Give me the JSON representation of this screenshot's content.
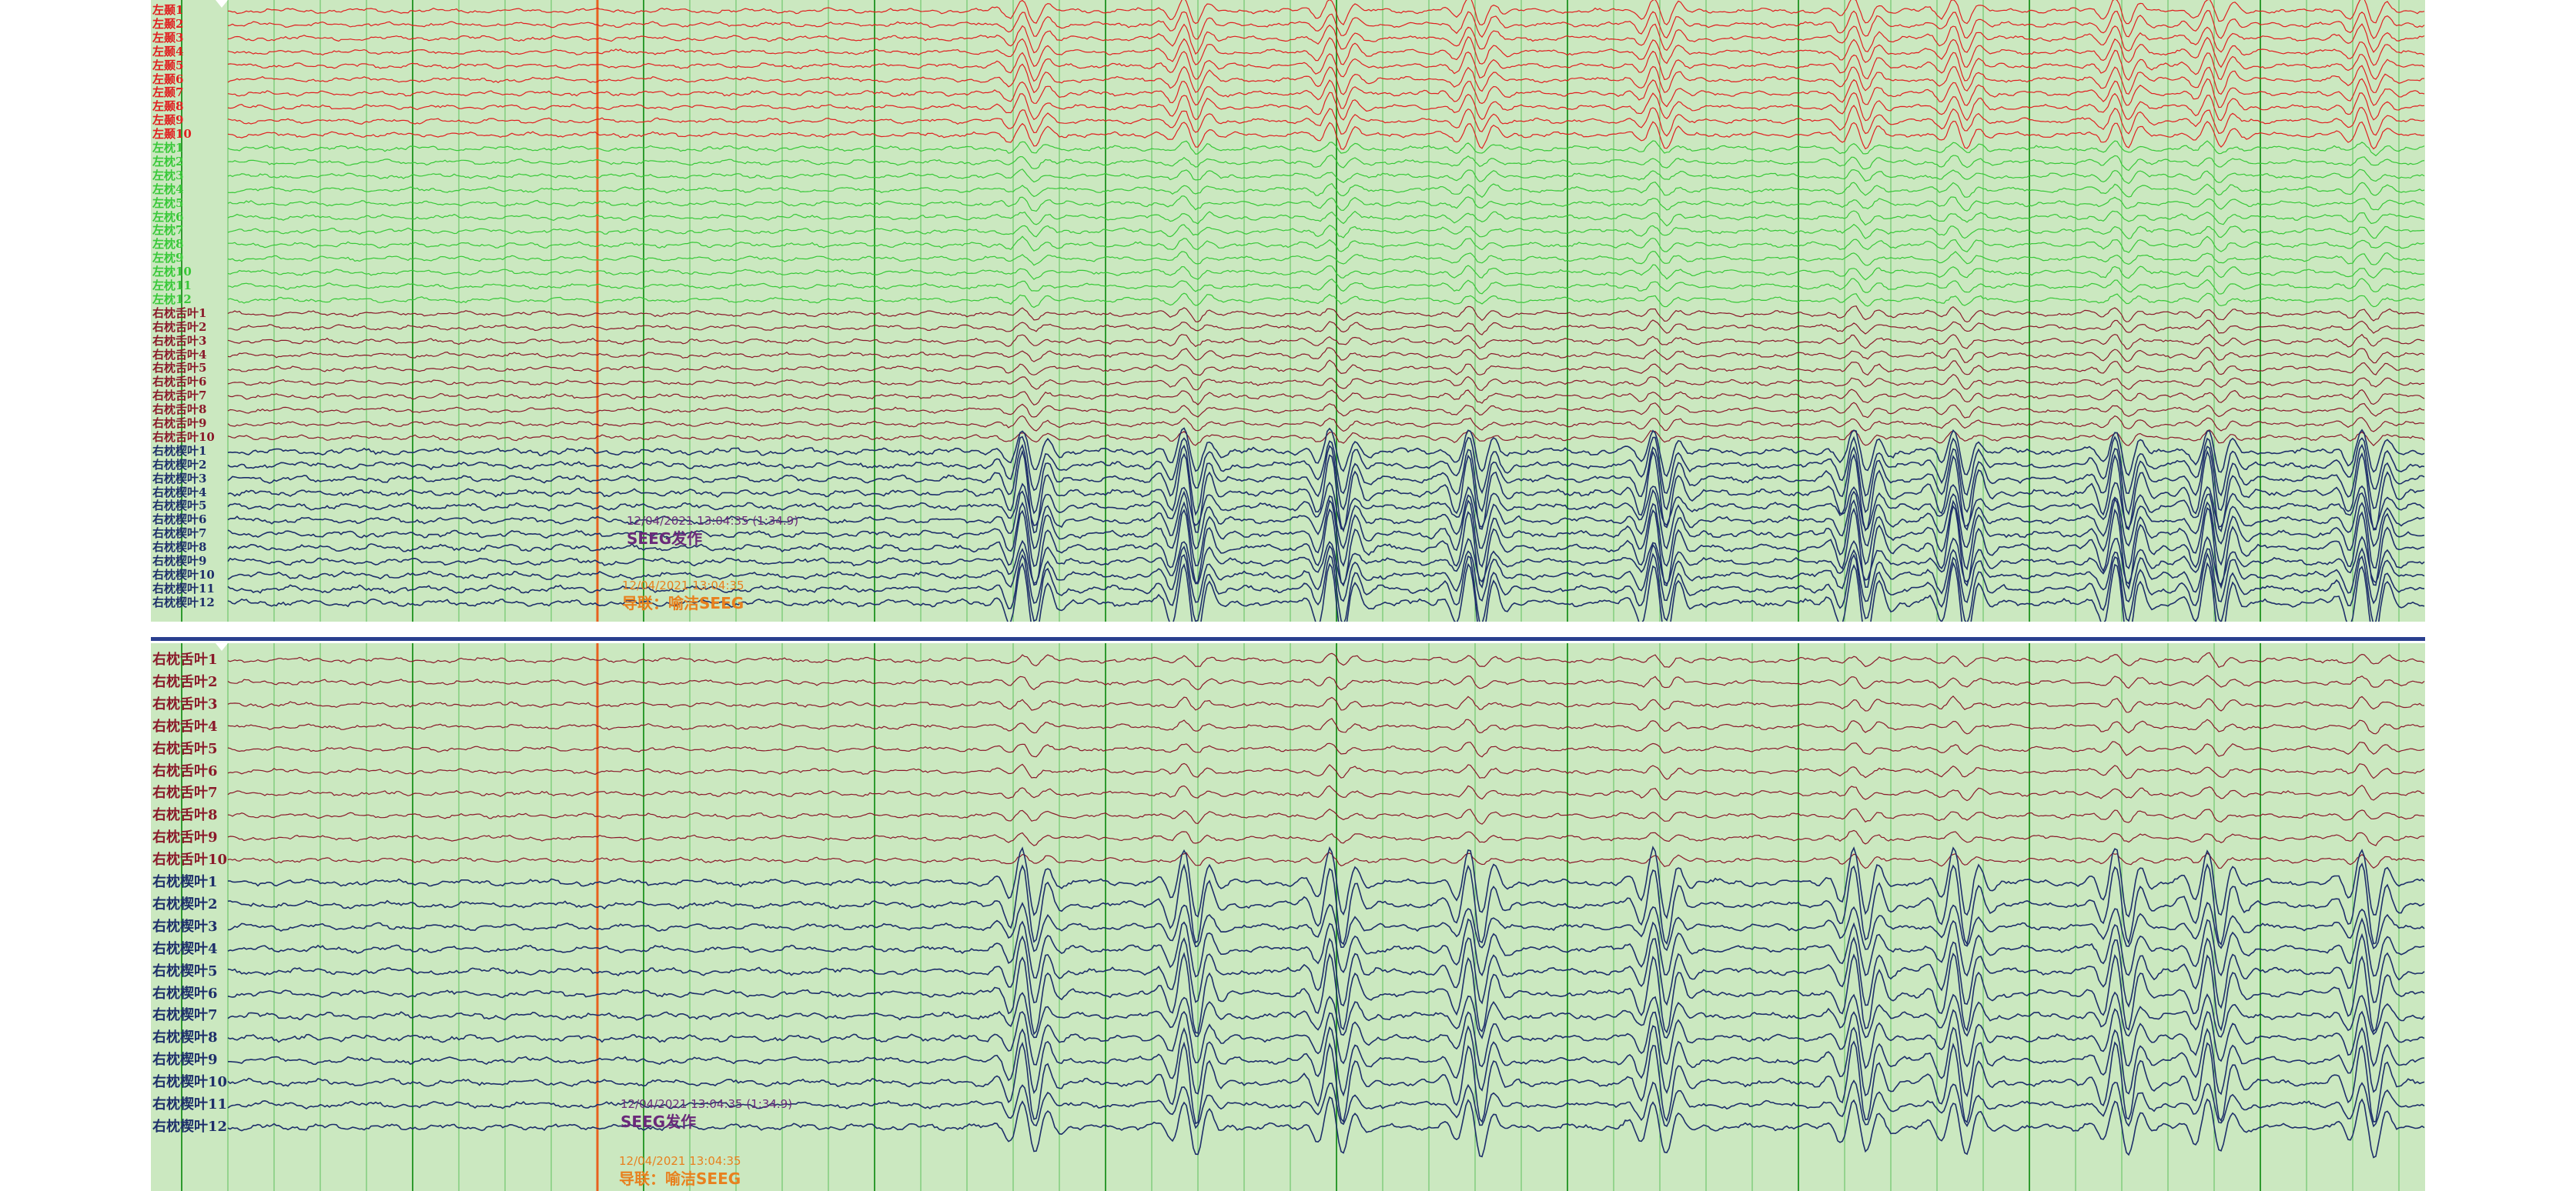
{
  "colors": {
    "background": "#cbe8c0",
    "left_temporal": "#e02020",
    "left_occipital": "#38c838",
    "right_occ_tongue": "#8a1a2a",
    "right_occ_wedge": "#1e2f6a",
    "event_cursor": "#e8601e",
    "annotation_purple": "#6a2a7a",
    "annotation_orange": "#e8801e"
  },
  "top_panel": {
    "groups": [
      {
        "id": "left_temporal",
        "color": "#e02020",
        "labels": [
          "左颞1",
          "左颞2",
          "左颞3",
          "左颞4",
          "左颞5",
          "左颞6",
          "左颞7",
          "左颞8",
          "左颞9",
          "左颞10"
        ]
      },
      {
        "id": "left_occipital",
        "color": "#38c838",
        "labels": [
          "左枕1",
          "左枕2",
          "左枕3",
          "左枕4",
          "左枕5",
          "左枕6",
          "左枕7",
          "左枕8",
          "左枕9",
          "左枕10",
          "左枕11",
          "左枕12"
        ]
      },
      {
        "id": "right_occ_tongue",
        "color": "#8a1a2a",
        "labels": [
          "右枕舌叶1",
          "右枕舌叶2",
          "右枕舌叶3",
          "右枕舌叶4",
          "右枕舌叶5",
          "右枕舌叶6",
          "右枕舌叶7",
          "右枕舌叶8",
          "右枕舌叶9",
          "右枕舌叶10"
        ]
      },
      {
        "id": "right_occ_wedge",
        "color": "#1e2f6a",
        "labels": [
          "右枕楔叶1",
          "右枕楔叶2",
          "右枕楔叶3",
          "右枕楔叶4",
          "右枕楔叶5",
          "右枕楔叶6",
          "右枕楔叶7",
          "右枕楔叶8",
          "右枕楔叶9",
          "右枕楔叶10",
          "右枕楔叶11",
          "右枕楔叶12"
        ]
      }
    ],
    "annotations": {
      "event_time": "12/04/2021 13:04:35 (1:34.9)",
      "event_text": "SEEG发作",
      "montage_time": "12/04/2021 13:04:35",
      "montage_text": "导联：喻洁SEEG"
    }
  },
  "bottom_panel": {
    "groups": [
      {
        "id": "right_occ_tongue",
        "color": "#8a1a2a",
        "labels": [
          "右枕舌叶1",
          "右枕舌叶2",
          "右枕舌叶3",
          "右枕舌叶4",
          "右枕舌叶5",
          "右枕舌叶6",
          "右枕舌叶7",
          "右枕舌叶8",
          "右枕舌叶9",
          "右枕舌叶10"
        ]
      },
      {
        "id": "right_occ_wedge",
        "color": "#1e2f6a",
        "labels": [
          "右枕楔叶1",
          "右枕楔叶2",
          "右枕楔叶3",
          "右枕楔叶4",
          "右枕楔叶5",
          "右枕楔叶6",
          "右枕楔叶7",
          "右枕楔叶8",
          "右枕楔叶9",
          "右枕楔叶10",
          "右枕楔叶11",
          "右枕楔叶12"
        ]
      }
    ],
    "annotations": {
      "event_time": "12/04/2021 13:04:35 (1:34.9)",
      "event_text": "SEEG发作",
      "montage_time": "12/04/2021 13:04:35",
      "montage_text": "导联：喻洁SEEG"
    }
  }
}
